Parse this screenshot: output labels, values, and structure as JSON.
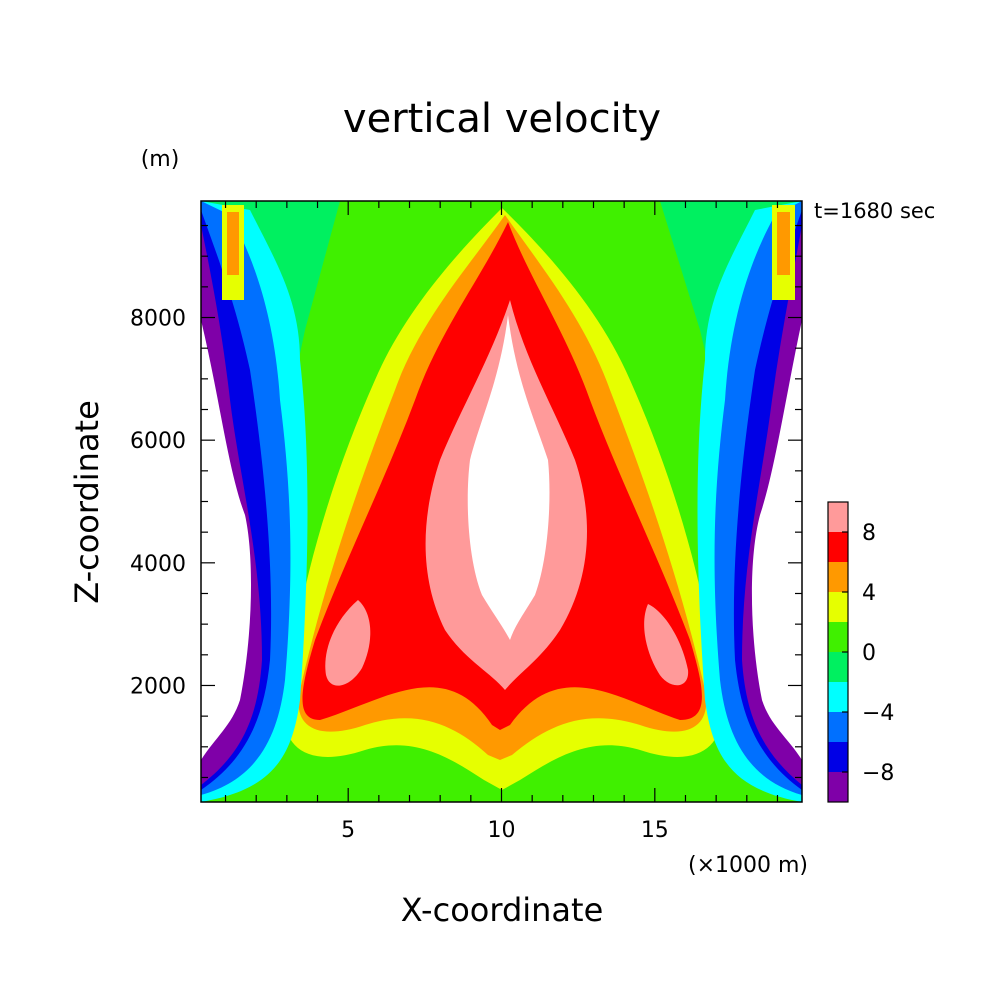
{
  "chart_data": {
    "type": "heatmap",
    "title": "vertical velocity",
    "xlabel": "X-coordinate",
    "ylabel": "Z-coordinate",
    "x_unit": "(×1000 m)",
    "y_unit": "(m)",
    "time_label": "t=1680 sec",
    "xlim": [
      0.2,
      19.8
    ],
    "ylim": [
      100,
      9900
    ],
    "x_ticks": [
      5,
      10,
      15
    ],
    "y_ticks": [
      2000,
      4000,
      6000,
      8000
    ],
    "colorbar": {
      "levels": [
        -10,
        -8,
        -6,
        -4,
        -2,
        0,
        2,
        4,
        6,
        8,
        10
      ],
      "tick_values": [
        8,
        4,
        0,
        -4,
        -8
      ],
      "tick_labels": [
        "8",
        "4",
        "0",
        "−4",
        "−8"
      ],
      "colors": [
        "#7f00a8",
        "#0000e6",
        "#0070ff",
        "#00ffff",
        "#00f060",
        "#40f000",
        "#e6ff00",
        "#ff9900",
        "#ff0000",
        "#ff9a9a"
      ],
      "overflow_color": "#ffffff"
    }
  }
}
